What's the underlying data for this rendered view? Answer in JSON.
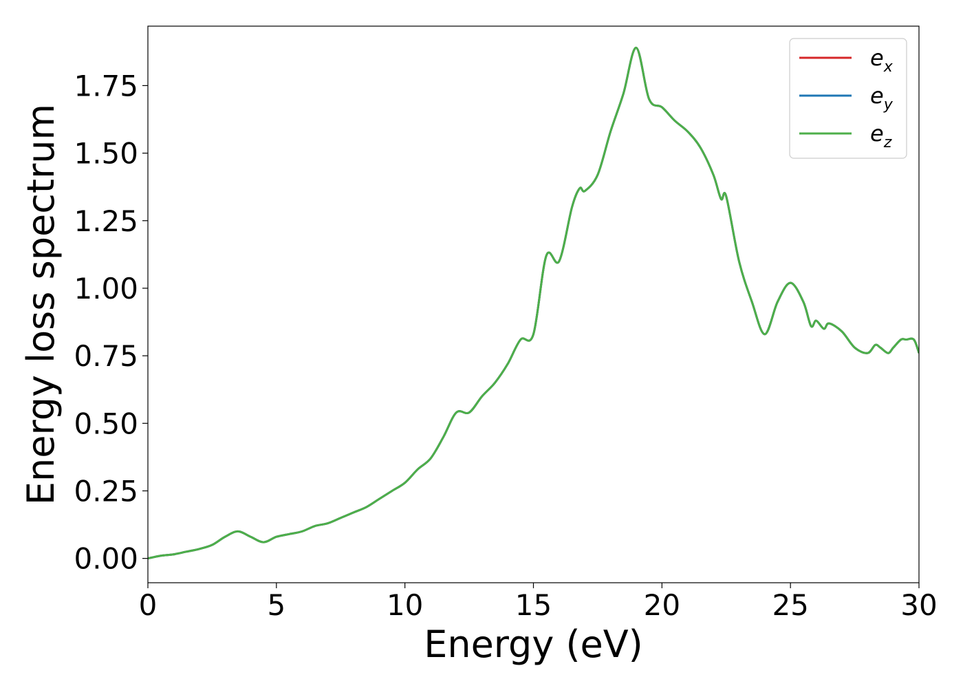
{
  "chart_data": {
    "type": "line",
    "xlabel": "Energy (eV)",
    "ylabel": "Energy loss spectrum",
    "xlim": [
      0,
      30
    ],
    "ylim": [
      -0.09,
      1.97
    ],
    "xticks": [
      0,
      5,
      10,
      15,
      20,
      25,
      30
    ],
    "xtick_labels": [
      "0",
      "5",
      "10",
      "15",
      "20",
      "25",
      "30"
    ],
    "yticks": [
      0.0,
      0.25,
      0.5,
      0.75,
      1.0,
      1.25,
      1.5,
      1.75
    ],
    "ytick_labels": [
      "0.00",
      "0.25",
      "0.50",
      "0.75",
      "1.00",
      "1.25",
      "1.50",
      "1.75"
    ],
    "grid": false,
    "legend_position": "top-right",
    "x": [
      0,
      0.5,
      1.0,
      1.5,
      2.0,
      2.5,
      3.0,
      3.5,
      4.0,
      4.5,
      5.0,
      5.5,
      6.0,
      6.5,
      7.0,
      7.5,
      8.0,
      8.5,
      9.0,
      9.5,
      10.0,
      10.5,
      11.0,
      11.5,
      12.0,
      12.5,
      13.0,
      13.5,
      14.0,
      14.5,
      15.0,
      15.5,
      16.0,
      16.5,
      16.8,
      17.0,
      17.5,
      18.0,
      18.5,
      19.0,
      19.5,
      20.0,
      20.5,
      21.0,
      21.5,
      22.0,
      22.3,
      22.5,
      23.0,
      23.5,
      24.0,
      24.5,
      25.0,
      25.5,
      25.8,
      26.0,
      26.3,
      26.5,
      27.0,
      27.5,
      28.0,
      28.3,
      28.5,
      28.8,
      29.0,
      29.3,
      29.5,
      29.8,
      30.0
    ],
    "series": [
      {
        "name": "e",
        "subscript": "x",
        "color": "#d62728",
        "values": [
          0.0,
          0.01,
          0.015,
          0.025,
          0.035,
          0.05,
          0.08,
          0.1,
          0.08,
          0.06,
          0.08,
          0.09,
          0.1,
          0.12,
          0.13,
          0.15,
          0.17,
          0.19,
          0.22,
          0.25,
          0.28,
          0.33,
          0.37,
          0.45,
          0.54,
          0.54,
          0.6,
          0.65,
          0.72,
          0.81,
          0.83,
          1.12,
          1.1,
          1.3,
          1.37,
          1.36,
          1.42,
          1.58,
          1.72,
          1.89,
          1.7,
          1.67,
          1.62,
          1.58,
          1.52,
          1.42,
          1.33,
          1.34,
          1.1,
          0.95,
          0.83,
          0.95,
          1.02,
          0.95,
          0.86,
          0.88,
          0.85,
          0.87,
          0.84,
          0.78,
          0.76,
          0.79,
          0.78,
          0.76,
          0.78,
          0.81,
          0.81,
          0.81,
          0.76
        ]
      },
      {
        "name": "e",
        "subscript": "y",
        "color": "#1f77b4",
        "values": [
          0.0,
          0.01,
          0.015,
          0.025,
          0.035,
          0.05,
          0.08,
          0.1,
          0.08,
          0.06,
          0.08,
          0.09,
          0.1,
          0.12,
          0.13,
          0.15,
          0.17,
          0.19,
          0.22,
          0.25,
          0.28,
          0.33,
          0.37,
          0.45,
          0.54,
          0.54,
          0.6,
          0.65,
          0.72,
          0.81,
          0.83,
          1.12,
          1.1,
          1.3,
          1.37,
          1.36,
          1.42,
          1.58,
          1.72,
          1.89,
          1.7,
          1.67,
          1.62,
          1.58,
          1.52,
          1.42,
          1.33,
          1.34,
          1.1,
          0.95,
          0.83,
          0.95,
          1.02,
          0.95,
          0.86,
          0.88,
          0.85,
          0.87,
          0.84,
          0.78,
          0.76,
          0.79,
          0.78,
          0.76,
          0.78,
          0.81,
          0.81,
          0.81,
          0.76
        ]
      },
      {
        "name": "e",
        "subscript": "z",
        "color": "#4daf4a",
        "values": [
          0.0,
          0.01,
          0.015,
          0.025,
          0.035,
          0.05,
          0.08,
          0.1,
          0.08,
          0.06,
          0.08,
          0.09,
          0.1,
          0.12,
          0.13,
          0.15,
          0.17,
          0.19,
          0.22,
          0.25,
          0.28,
          0.33,
          0.37,
          0.45,
          0.54,
          0.54,
          0.6,
          0.65,
          0.72,
          0.81,
          0.83,
          1.12,
          1.1,
          1.3,
          1.37,
          1.36,
          1.42,
          1.58,
          1.72,
          1.89,
          1.7,
          1.67,
          1.62,
          1.58,
          1.52,
          1.42,
          1.33,
          1.34,
          1.1,
          0.95,
          0.83,
          0.95,
          1.02,
          0.95,
          0.86,
          0.88,
          0.85,
          0.87,
          0.84,
          0.78,
          0.76,
          0.79,
          0.78,
          0.76,
          0.78,
          0.81,
          0.81,
          0.81,
          0.76
        ]
      }
    ]
  }
}
